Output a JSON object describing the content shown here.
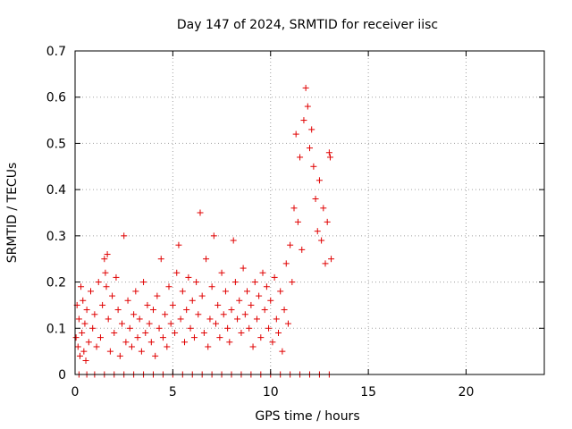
{
  "chart_data": {
    "type": "scatter",
    "title": "Day 147 of 2024, SRMTID for receiver iisc",
    "xlabel": "GPS time / hours",
    "ylabel": "SRMTID / TECUs",
    "xlim": [
      0,
      24
    ],
    "ylim": [
      0,
      0.7
    ],
    "x_ticks": [
      0,
      5,
      10,
      15,
      20
    ],
    "y_ticks": [
      0,
      0.1,
      0.2,
      0.3,
      0.4,
      0.5,
      0.6,
      0.7
    ],
    "x_tick_labels": [
      "0",
      "5",
      "10",
      "15",
      "20"
    ],
    "y_tick_labels": [
      "0",
      "0.1",
      "0.2",
      "0.3",
      "0.4",
      "0.5",
      "0.6",
      "0.7"
    ],
    "grid": true,
    "marker": "plus",
    "marker_color": "#e00000",
    "series": [
      {
        "name": "SRMTID",
        "points": [
          [
            0.05,
            0.08
          ],
          [
            0.1,
            0.15
          ],
          [
            0.15,
            0.06
          ],
          [
            0.2,
            0.12
          ],
          [
            0.25,
            0.04
          ],
          [
            0.3,
            0.19
          ],
          [
            0.35,
            0.09
          ],
          [
            0.4,
            0.16
          ],
          [
            0.45,
            0.05
          ],
          [
            0.5,
            0.11
          ],
          [
            0.55,
            0.03
          ],
          [
            0.6,
            0.14
          ],
          [
            0.7,
            0.07
          ],
          [
            0.8,
            0.18
          ],
          [
            0.9,
            0.1
          ],
          [
            1.0,
            0.13
          ],
          [
            1.1,
            0.06
          ],
          [
            1.2,
            0.2
          ],
          [
            1.3,
            0.08
          ],
          [
            1.4,
            0.15
          ],
          [
            1.5,
            0.25
          ],
          [
            1.55,
            0.22
          ],
          [
            1.6,
            0.19
          ],
          [
            1.65,
            0.26
          ],
          [
            1.7,
            0.12
          ],
          [
            1.8,
            0.05
          ],
          [
            1.9,
            0.17
          ],
          [
            2.0,
            0.09
          ],
          [
            2.1,
            0.21
          ],
          [
            2.2,
            0.14
          ],
          [
            2.3,
            0.04
          ],
          [
            2.4,
            0.11
          ],
          [
            2.5,
            0.3
          ],
          [
            2.6,
            0.07
          ],
          [
            2.7,
            0.16
          ],
          [
            2.8,
            0.1
          ],
          [
            2.9,
            0.06
          ],
          [
            3.0,
            0.13
          ],
          [
            3.1,
            0.18
          ],
          [
            3.2,
            0.08
          ],
          [
            3.3,
            0.12
          ],
          [
            3.4,
            0.05
          ],
          [
            3.5,
            0.2
          ],
          [
            3.6,
            0.09
          ],
          [
            3.7,
            0.15
          ],
          [
            3.8,
            0.11
          ],
          [
            3.9,
            0.07
          ],
          [
            4.0,
            0.14
          ],
          [
            4.1,
            0.04
          ],
          [
            4.2,
            0.17
          ],
          [
            4.3,
            0.1
          ],
          [
            4.4,
            0.25
          ],
          [
            4.5,
            0.08
          ],
          [
            4.6,
            0.13
          ],
          [
            4.7,
            0.06
          ],
          [
            4.8,
            0.19
          ],
          [
            4.9,
            0.11
          ],
          [
            5.0,
            0.15
          ],
          [
            5.1,
            0.09
          ],
          [
            5.2,
            0.22
          ],
          [
            5.3,
            0.28
          ],
          [
            5.4,
            0.12
          ],
          [
            5.5,
            0.18
          ],
          [
            5.6,
            0.07
          ],
          [
            5.7,
            0.14
          ],
          [
            5.8,
            0.21
          ],
          [
            5.9,
            0.1
          ],
          [
            6.0,
            0.16
          ],
          [
            6.1,
            0.08
          ],
          [
            6.2,
            0.2
          ],
          [
            6.3,
            0.13
          ],
          [
            6.4,
            0.35
          ],
          [
            6.5,
            0.17
          ],
          [
            6.6,
            0.09
          ],
          [
            6.7,
            0.25
          ],
          [
            6.8,
            0.06
          ],
          [
            6.9,
            0.12
          ],
          [
            7.0,
            0.19
          ],
          [
            7.1,
            0.3
          ],
          [
            7.2,
            0.11
          ],
          [
            7.3,
            0.15
          ],
          [
            7.4,
            0.08
          ],
          [
            7.5,
            0.22
          ],
          [
            7.6,
            0.13
          ],
          [
            7.7,
            0.18
          ],
          [
            7.8,
            0.1
          ],
          [
            7.9,
            0.07
          ],
          [
            8.0,
            0.14
          ],
          [
            8.1,
            0.29
          ],
          [
            8.2,
            0.2
          ],
          [
            8.3,
            0.12
          ],
          [
            8.4,
            0.16
          ],
          [
            8.5,
            0.09
          ],
          [
            8.6,
            0.23
          ],
          [
            8.7,
            0.13
          ],
          [
            8.8,
            0.18
          ],
          [
            8.9,
            0.1
          ],
          [
            9.0,
            0.15
          ],
          [
            9.1,
            0.06
          ],
          [
            9.2,
            0.2
          ],
          [
            9.3,
            0.12
          ],
          [
            9.4,
            0.17
          ],
          [
            9.5,
            0.08
          ],
          [
            9.6,
            0.22
          ],
          [
            9.7,
            0.14
          ],
          [
            9.8,
            0.19
          ],
          [
            9.9,
            0.1
          ],
          [
            10.0,
            0.16
          ],
          [
            10.1,
            0.07
          ],
          [
            10.2,
            0.21
          ],
          [
            10.3,
            0.12
          ],
          [
            10.4,
            0.09
          ],
          [
            10.5,
            0.18
          ],
          [
            10.6,
            0.05
          ],
          [
            10.7,
            0.14
          ],
          [
            10.8,
            0.24
          ],
          [
            10.9,
            0.11
          ],
          [
            11.0,
            0.28
          ],
          [
            11.1,
            0.2
          ],
          [
            11.2,
            0.36
          ],
          [
            11.3,
            0.52
          ],
          [
            11.4,
            0.33
          ],
          [
            11.5,
            0.47
          ],
          [
            11.6,
            0.27
          ],
          [
            11.7,
            0.55
          ],
          [
            11.8,
            0.62
          ],
          [
            11.9,
            0.58
          ],
          [
            12.0,
            0.49
          ],
          [
            12.1,
            0.53
          ],
          [
            12.2,
            0.45
          ],
          [
            12.3,
            0.38
          ],
          [
            12.4,
            0.31
          ],
          [
            12.5,
            0.42
          ],
          [
            12.6,
            0.29
          ],
          [
            12.7,
            0.36
          ],
          [
            12.8,
            0.24
          ],
          [
            12.9,
            0.33
          ],
          [
            13.0,
            0.48
          ],
          [
            13.05,
            0.47
          ],
          [
            13.1,
            0.25
          ],
          [
            0.2,
            0
          ],
          [
            0.6,
            0
          ],
          [
            1.0,
            0
          ],
          [
            1.5,
            0
          ],
          [
            2.0,
            0
          ],
          [
            2.5,
            0
          ],
          [
            3.0,
            0
          ],
          [
            3.5,
            0
          ],
          [
            4.0,
            0
          ],
          [
            4.5,
            0
          ],
          [
            5.0,
            0
          ],
          [
            5.5,
            0
          ],
          [
            6.0,
            0
          ],
          [
            6.5,
            0
          ],
          [
            7.0,
            0
          ],
          [
            7.5,
            0
          ],
          [
            8.0,
            0
          ],
          [
            8.5,
            0
          ],
          [
            9.0,
            0
          ],
          [
            9.5,
            0
          ],
          [
            10.0,
            0
          ],
          [
            10.5,
            0
          ],
          [
            11.0,
            0
          ],
          [
            11.5,
            0
          ],
          [
            12.0,
            0
          ],
          [
            12.5,
            0
          ],
          [
            13.0,
            0
          ]
        ]
      }
    ]
  }
}
